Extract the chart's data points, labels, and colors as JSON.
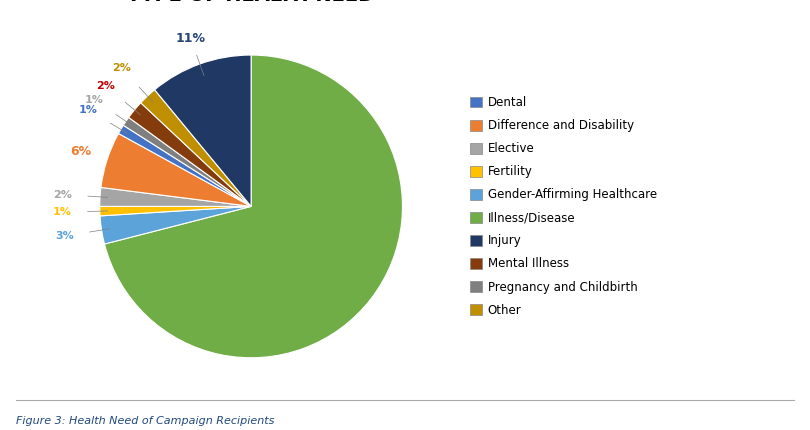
{
  "title": "TYPE OF HEALTH NEED",
  "caption": "Figure 3: Health Need of Campaign Recipients",
  "categories": [
    "Dental",
    "Difference and Disability",
    "Elective",
    "Fertility",
    "Gender-Affirming Healthcare",
    "Illness/Disease",
    "Injury",
    "Mental Illness",
    "Pregnancy and Childbirth",
    "Other"
  ],
  "slice_order": [
    "Illness/Disease",
    "Gender-Affirming Healthcare",
    "Fertility",
    "Elective",
    "Difference and Disability",
    "Dental",
    "Pregnancy and Childbirth",
    "Mental Illness",
    "Other",
    "Injury"
  ],
  "slice_values": [
    71,
    3,
    1,
    2,
    6,
    1,
    1,
    2,
    2,
    11
  ],
  "slice_colors": [
    "#70AD47",
    "#5BA3D9",
    "#FFC000",
    "#A5A5A5",
    "#ED7D31",
    "#4472C4",
    "#7F7F7F",
    "#843C0C",
    "#BF8F00",
    "#1F3864"
  ],
  "slice_label_colors": [
    "#70AD47",
    "#5BA3D9",
    "#FFC000",
    "#A5A5A5",
    "#ED7D31",
    "#4472C4",
    "#A5A5A5",
    "#C00000",
    "#BF8F00",
    "#264478"
  ],
  "legend_colors": [
    "#4472C4",
    "#ED7D31",
    "#A5A5A5",
    "#FFC000",
    "#5BA3D9",
    "#70AD47",
    "#1F3864",
    "#843C0C",
    "#7F7F7F",
    "#BF8F00"
  ],
  "startangle": 90,
  "figsize": [
    8.1,
    4.3
  ],
  "dpi": 100
}
